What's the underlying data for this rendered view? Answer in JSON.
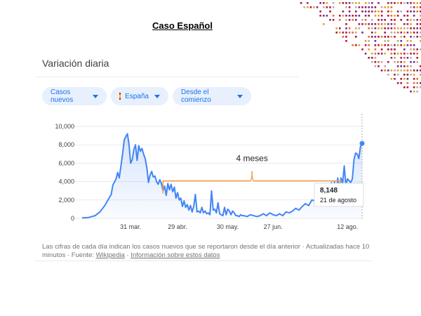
{
  "slide_title": "Caso Español",
  "card_title": "Variación diaria",
  "chips": [
    {
      "label": "Casos nuevos"
    },
    {
      "label": "España"
    },
    {
      "label": "Desde el comienzo"
    }
  ],
  "footer": {
    "text": "Las cifras de cada día indican los casos nuevos que se reportaron desde el día anterior · Actualizadas hace 10 minutos · Fuente:",
    "source_link": "Wikipedia",
    "sep": "·",
    "info_link": "Información sobre estos datos"
  },
  "colors": {
    "line": "#4285f4",
    "annotation": "#f4a04d",
    "chip_bg": "#e8f0fe",
    "chip_text": "#1a73e8"
  },
  "chart_data": {
    "type": "area",
    "ylim": [
      0,
      10000
    ],
    "y_ticks": [
      "0",
      "2,000",
      "4,000",
      "6,000",
      "8,000",
      "10,000"
    ],
    "x_ticks": [
      {
        "label": "31 mar.",
        "day": 30
      },
      {
        "label": "29 abr.",
        "day": 59
      },
      {
        "label": "30 may.",
        "day": 90
      },
      {
        "label": "27 jun.",
        "day": 118
      },
      {
        "label": "12 ago.",
        "day": 164
      }
    ],
    "x_start": "1 mar.",
    "x_end": "21 de agosto",
    "x_start_day": 0,
    "x_end_day": 173,
    "series": [
      {
        "values": [
          [
            0,
            50
          ],
          [
            4,
            100
          ],
          [
            8,
            300
          ],
          [
            11,
            700
          ],
          [
            14,
            1400
          ],
          [
            16,
            2000
          ],
          [
            18,
            2600
          ],
          [
            19,
            3600
          ],
          [
            21,
            4300
          ],
          [
            22,
            5000
          ],
          [
            23,
            4400
          ],
          [
            25,
            7000
          ],
          [
            26,
            8500
          ],
          [
            27,
            8900
          ],
          [
            28,
            9200
          ],
          [
            29,
            8000
          ],
          [
            30,
            6000
          ],
          [
            31,
            6400
          ],
          [
            32,
            7500
          ],
          [
            33,
            8000
          ],
          [
            34,
            6300
          ],
          [
            35,
            7900
          ],
          [
            36,
            7300
          ],
          [
            37,
            7600
          ],
          [
            38,
            7000
          ],
          [
            39,
            6500
          ],
          [
            40,
            5500
          ],
          [
            41,
            3900
          ],
          [
            42,
            4700
          ],
          [
            43,
            5100
          ],
          [
            44,
            4500
          ],
          [
            45,
            4600
          ],
          [
            46,
            4000
          ],
          [
            47,
            3700
          ],
          [
            48,
            4200
          ],
          [
            49,
            3800
          ],
          [
            50,
            3000
          ],
          [
            51,
            3500
          ],
          [
            52,
            2500
          ],
          [
            53,
            3800
          ],
          [
            54,
            3100
          ],
          [
            55,
            3700
          ],
          [
            56,
            2900
          ],
          [
            57,
            3400
          ],
          [
            58,
            2200
          ],
          [
            59,
            2800
          ],
          [
            60,
            2000
          ],
          [
            61,
            2200
          ],
          [
            62,
            1300
          ],
          [
            63,
            1900
          ],
          [
            64,
            1200
          ],
          [
            65,
            1500
          ],
          [
            66,
            900
          ],
          [
            67,
            1400
          ],
          [
            68,
            700
          ],
          [
            69,
            1300
          ],
          [
            70,
            2600
          ],
          [
            71,
            700
          ],
          [
            72,
            800
          ],
          [
            73,
            600
          ],
          [
            74,
            1200
          ],
          [
            75,
            600
          ],
          [
            76,
            800
          ],
          [
            77,
            500
          ],
          [
            78,
            600
          ],
          [
            79,
            400
          ],
          [
            80,
            3000
          ],
          [
            81,
            900
          ],
          [
            82,
            1000
          ],
          [
            83,
            600
          ],
          [
            84,
            1700
          ],
          [
            85,
            500
          ],
          [
            86,
            400
          ],
          [
            87,
            300
          ],
          [
            88,
            1200
          ],
          [
            89,
            400
          ],
          [
            90,
            1000
          ],
          [
            91,
            800
          ],
          [
            92,
            400
          ],
          [
            93,
            800
          ],
          [
            94,
            600
          ],
          [
            95,
            300
          ],
          [
            96,
            300
          ],
          [
            97,
            200
          ],
          [
            98,
            400
          ],
          [
            99,
            300
          ],
          [
            100,
            300
          ],
          [
            102,
            200
          ],
          [
            104,
            400
          ],
          [
            106,
            300
          ],
          [
            108,
            200
          ],
          [
            110,
            300
          ],
          [
            112,
            500
          ],
          [
            114,
            300
          ],
          [
            116,
            600
          ],
          [
            118,
            400
          ],
          [
            120,
            300
          ],
          [
            122,
            500
          ],
          [
            124,
            300
          ],
          [
            126,
            700
          ],
          [
            128,
            600
          ],
          [
            130,
            800
          ],
          [
            132,
            1100
          ],
          [
            134,
            900
          ],
          [
            136,
            1300
          ],
          [
            138,
            1600
          ],
          [
            140,
            1400
          ],
          [
            142,
            2000
          ],
          [
            144,
            1900
          ],
          [
            146,
            2500
          ],
          [
            148,
            2400
          ],
          [
            150,
            3000
          ],
          [
            151,
            2600
          ],
          [
            152,
            3400
          ],
          [
            153,
            2800
          ],
          [
            154,
            3900
          ],
          [
            155,
            3300
          ],
          [
            156,
            4000
          ],
          [
            157,
            2600
          ],
          [
            158,
            4400
          ],
          [
            159,
            3000
          ],
          [
            160,
            4400
          ],
          [
            161,
            3800
          ],
          [
            162,
            5700
          ],
          [
            163,
            3600
          ],
          [
            164,
            4300
          ],
          [
            165,
            4100
          ],
          [
            166,
            3900
          ],
          [
            167,
            4300
          ],
          [
            168,
            6400
          ],
          [
            169,
            7100
          ],
          [
            170,
            7000
          ],
          [
            171,
            6500
          ],
          [
            172,
            7800
          ],
          [
            173,
            8148
          ]
        ]
      }
    ],
    "annotation": {
      "text": "4 meses",
      "from_day": 50,
      "to_day": 160,
      "level": 4000
    },
    "tooltip": {
      "value": "8,148",
      "date": "21 de agosto"
    }
  }
}
